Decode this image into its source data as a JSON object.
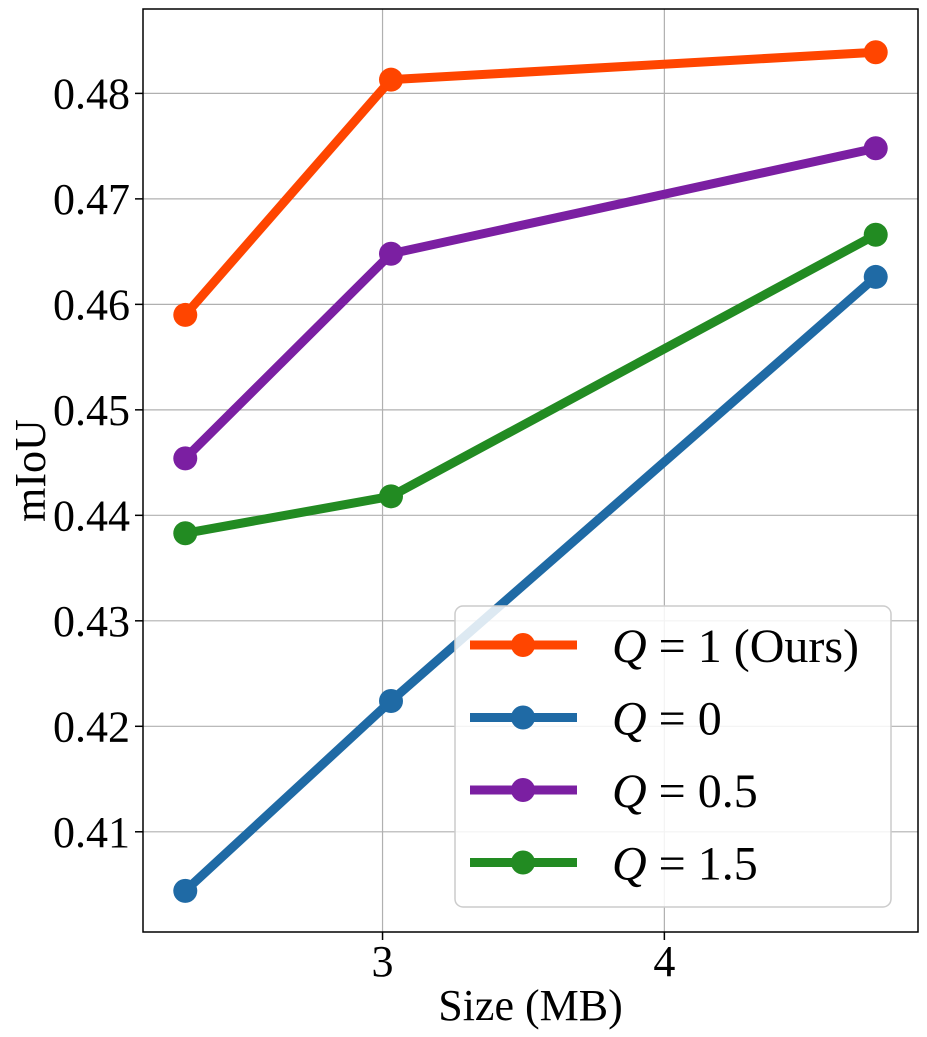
{
  "chart_data": {
    "type": "line",
    "title": "",
    "xlabel": "Size (MB)",
    "ylabel": "mIoU",
    "xlim": [
      2.15,
      4.9
    ],
    "ylim": [
      0.4005,
      0.488
    ],
    "xticks": [
      3,
      4
    ],
    "xtick_labels": [
      "3",
      "4"
    ],
    "yticks": [
      0.41,
      0.42,
      0.43,
      0.44,
      0.45,
      0.46,
      0.47,
      0.48
    ],
    "ytick_labels": [
      "0.41",
      "0.42",
      "0.43",
      "0.44",
      "0.45",
      "0.46",
      "0.47",
      "0.48"
    ],
    "grid": true,
    "legend_position": "lower-right",
    "series": [
      {
        "name": "Q = 1 (Ours)",
        "legend_symbol": "Q",
        "legend_text": " = 1 (Ours)",
        "color": "#ff4500",
        "x": [
          2.3,
          3.03,
          4.75
        ],
        "y": [
          0.459,
          0.4813,
          0.4839
        ]
      },
      {
        "name": "Q = 0",
        "legend_symbol": "Q",
        "legend_text": " = 0",
        "color": "#1f6aa5",
        "x": [
          2.3,
          3.03,
          4.75
        ],
        "y": [
          0.4044,
          0.4224,
          0.4626
        ]
      },
      {
        "name": "Q = 0.5",
        "legend_symbol": "Q",
        "legend_text": " = 0.5",
        "color": "#7b1fa2",
        "x": [
          2.3,
          3.03,
          4.75
        ],
        "y": [
          0.4454,
          0.4648,
          0.4748
        ]
      },
      {
        "name": "Q = 1.5",
        "legend_symbol": "Q",
        "legend_text": " = 1.5",
        "color": "#228b22",
        "x": [
          2.3,
          3.03,
          4.75
        ],
        "y": [
          0.4383,
          0.4418,
          0.4666
        ]
      }
    ]
  }
}
